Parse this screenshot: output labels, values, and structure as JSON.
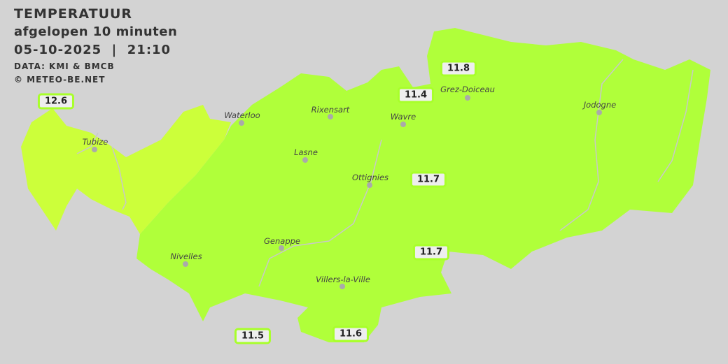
{
  "header": {
    "title": "TEMPERATUUR",
    "subtitle": "afgelopen 10 minuten",
    "datetime": "05-10-2025  |  21:10",
    "source": "DATA: KMI & BMCB",
    "copyright": "© METEO-BE.NET"
  },
  "colors": {
    "background": "#d3d3d3",
    "zone_main": "#b0ff3a",
    "zone_west": "#ccff3a",
    "value_border": "#a8ff2a"
  },
  "towns": [
    {
      "name": "Tubize"
    },
    {
      "name": "Waterloo"
    },
    {
      "name": "Rixensart"
    },
    {
      "name": "Wavre"
    },
    {
      "name": "Grez-Doiceau"
    },
    {
      "name": "Jodogne"
    },
    {
      "name": "Lasne"
    },
    {
      "name": "Ottignies"
    },
    {
      "name": "Genappe"
    },
    {
      "name": "Nivelles"
    },
    {
      "name": "Villers-la-Ville"
    }
  ],
  "readings": [
    {
      "value": "12.6"
    },
    {
      "value": "11.8"
    },
    {
      "value": "11.4"
    },
    {
      "value": "11.7"
    },
    {
      "value": "11.7"
    },
    {
      "value": "11.5"
    },
    {
      "value": "11.6"
    }
  ]
}
